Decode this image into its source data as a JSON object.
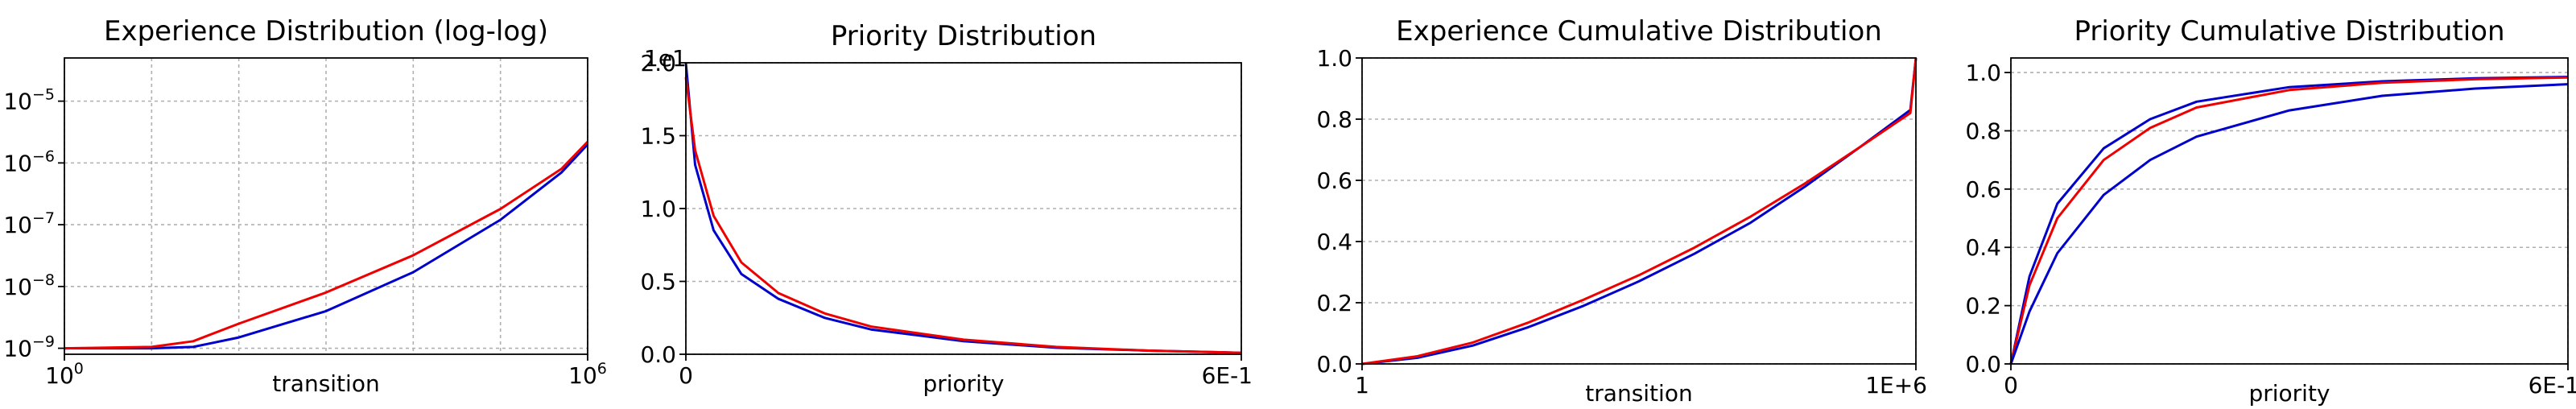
{
  "chart_data": [
    {
      "type": "line",
      "title": "Experience Distribution (log-log)",
      "xlabel": "transition",
      "ylabel": "",
      "xscale": "log",
      "yscale": "log",
      "xlim": [
        1,
        1000000
      ],
      "ylim": [
        8e-10,
        5e-05
      ],
      "x_ticks": [
        {
          "base": "10",
          "exp": "0",
          "value": 1
        },
        {
          "base": "10",
          "exp": "6",
          "value": 1000000
        }
      ],
      "y_ticks": [
        {
          "base": "10",
          "exp": "−9",
          "value": 1e-09
        },
        {
          "base": "10",
          "exp": "−8",
          "value": 1e-08
        },
        {
          "base": "10",
          "exp": "−7",
          "value": 1e-07
        },
        {
          "base": "10",
          "exp": "−6",
          "value": 1e-06
        },
        {
          "base": "10",
          "exp": "−5",
          "value": 1e-05
        }
      ],
      "grid": true,
      "series": [
        {
          "color": "#0000cc",
          "x": [
            1,
            10,
            30,
            100,
            1000,
            10000,
            100000,
            500000,
            1000000
          ],
          "y": [
            1e-09,
            1e-09,
            1.05e-09,
            1.5e-09,
            4e-09,
            1.7e-08,
            1.2e-07,
            7e-07,
            2e-06
          ]
        },
        {
          "color": "#ee0000",
          "x": [
            1,
            10,
            30,
            100,
            1000,
            10000,
            100000,
            500000,
            1000000
          ],
          "y": [
            1e-09,
            1.05e-09,
            1.3e-09,
            2.5e-09,
            8e-09,
            3.2e-08,
            1.8e-07,
            8e-07,
            2.2e-06
          ]
        }
      ]
    },
    {
      "type": "line",
      "title": "Priority Distribution",
      "xlabel": "priority",
      "ylabel": "",
      "xlim": [
        0,
        0.6
      ],
      "ylim": [
        0,
        20
      ],
      "y_offset_label": "1e1",
      "x_ticks": [
        {
          "label": "0",
          "value": 0
        },
        {
          "label": "6E-1",
          "value": 0.6
        }
      ],
      "y_ticks": [
        {
          "label": "0.0",
          "value": 0
        },
        {
          "label": "0.5",
          "value": 5
        },
        {
          "label": "1.0",
          "value": 10
        },
        {
          "label": "1.5",
          "value": 15
        },
        {
          "label": "2.0",
          "value": 20
        }
      ],
      "grid": true,
      "series": [
        {
          "color": "#0000cc",
          "x": [
            0,
            0.01,
            0.03,
            0.06,
            0.1,
            0.15,
            0.2,
            0.3,
            0.4,
            0.5,
            0.6
          ],
          "y": [
            20,
            13,
            8.5,
            5.5,
            3.8,
            2.5,
            1.7,
            0.9,
            0.45,
            0.25,
            0.1
          ]
        },
        {
          "color": "#ee0000",
          "x": [
            0,
            0.01,
            0.03,
            0.06,
            0.1,
            0.15,
            0.2,
            0.3,
            0.4,
            0.5,
            0.6
          ],
          "y": [
            19,
            14,
            9.5,
            6.3,
            4.2,
            2.8,
            1.9,
            1.0,
            0.5,
            0.25,
            0.1
          ]
        }
      ]
    },
    {
      "type": "line",
      "title": "Experience Cumulative Distribution",
      "xlabel": "transition",
      "ylabel": "",
      "xlim": [
        1,
        1000000
      ],
      "ylim": [
        0,
        1
      ],
      "x_ticks": [
        {
          "label": "1",
          "value": 1
        },
        {
          "label": "1E+6",
          "value": 1000000
        }
      ],
      "y_ticks": [
        {
          "label": "0.0",
          "value": 0
        },
        {
          "label": "0.2",
          "value": 0.2
        },
        {
          "label": "0.4",
          "value": 0.4
        },
        {
          "label": "0.6",
          "value": 0.6
        },
        {
          "label": "0.8",
          "value": 0.8
        },
        {
          "label": "1.0",
          "value": 1
        }
      ],
      "grid": true,
      "series": [
        {
          "color": "#0000cc",
          "x": [
            1,
            100000,
            200000,
            300000,
            400000,
            500000,
            600000,
            700000,
            800000,
            900000,
            990000,
            1000000
          ],
          "y": [
            0,
            0.02,
            0.06,
            0.12,
            0.19,
            0.27,
            0.36,
            0.46,
            0.58,
            0.71,
            0.83,
            1.0
          ]
        },
        {
          "color": "#ee0000",
          "x": [
            1,
            100000,
            200000,
            300000,
            400000,
            500000,
            600000,
            700000,
            800000,
            900000,
            990000,
            1000000
          ],
          "y": [
            0,
            0.025,
            0.07,
            0.135,
            0.21,
            0.29,
            0.38,
            0.48,
            0.59,
            0.71,
            0.82,
            1.0
          ]
        }
      ]
    },
    {
      "type": "line",
      "title": "Priority Cumulative Distribution",
      "xlabel": "priority",
      "ylabel": "",
      "xlim": [
        0,
        0.6
      ],
      "ylim": [
        0,
        1.05
      ],
      "x_ticks": [
        {
          "label": "0",
          "value": 0
        },
        {
          "label": "6E-1",
          "value": 0.6
        }
      ],
      "y_ticks": [
        {
          "label": "0.0",
          "value": 0
        },
        {
          "label": "0.2",
          "value": 0.2
        },
        {
          "label": "0.4",
          "value": 0.4
        },
        {
          "label": "0.6",
          "value": 0.6
        },
        {
          "label": "0.8",
          "value": 0.8
        },
        {
          "label": "1.0",
          "value": 1
        }
      ],
      "grid": true,
      "series": [
        {
          "color": "#0000cc",
          "x": [
            0,
            0.02,
            0.05,
            0.1,
            0.15,
            0.2,
            0.3,
            0.4,
            0.5,
            0.6
          ],
          "y": [
            0,
            0.3,
            0.55,
            0.74,
            0.84,
            0.9,
            0.95,
            0.97,
            0.98,
            0.985
          ]
        },
        {
          "color": "#ee0000",
          "x": [
            0,
            0.02,
            0.05,
            0.1,
            0.15,
            0.2,
            0.3,
            0.4,
            0.5,
            0.6
          ],
          "y": [
            0,
            0.27,
            0.5,
            0.7,
            0.81,
            0.88,
            0.94,
            0.965,
            0.977,
            0.983
          ]
        },
        {
          "color": "#0000cc",
          "x": [
            0,
            0.02,
            0.05,
            0.1,
            0.15,
            0.2,
            0.3,
            0.4,
            0.5,
            0.6
          ],
          "y": [
            0,
            0.18,
            0.38,
            0.58,
            0.7,
            0.78,
            0.87,
            0.92,
            0.945,
            0.96
          ]
        }
      ]
    }
  ]
}
